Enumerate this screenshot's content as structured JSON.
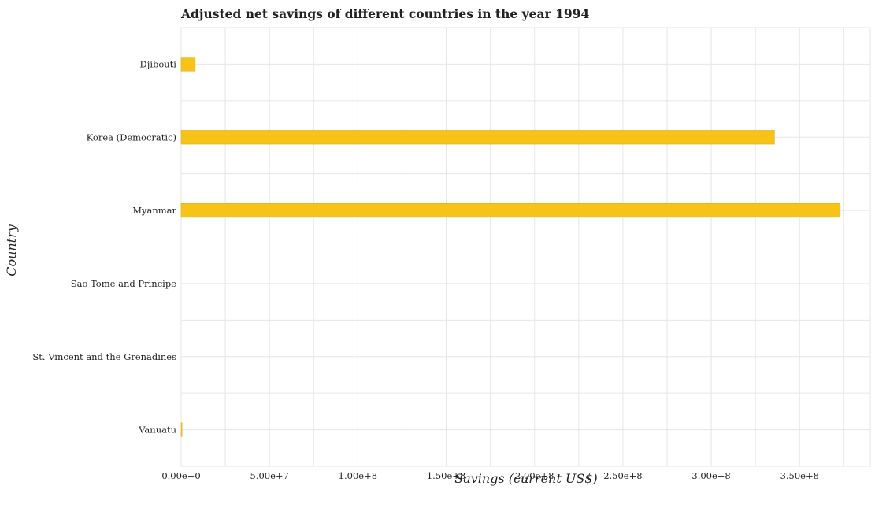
{
  "chart_data": {
    "type": "bar",
    "orientation": "horizontal",
    "title": "Adjusted net savings of different countries in the year 1994",
    "xlabel": "Savings (current US$)",
    "ylabel": "Country",
    "categories": [
      "Djibouti",
      "Korea (Democratic)",
      "Myanmar",
      "Sao Tome and Principe",
      "St. Vincent and the Grenadines",
      "Vanuatu"
    ],
    "values": [
      8000000,
      335800000,
      373000000,
      0,
      0,
      500000
    ],
    "xlim": [
      0,
      390000000
    ],
    "x_ticks": [
      0,
      50000000,
      100000000,
      150000000,
      200000000,
      250000000,
      300000000,
      350000000
    ],
    "x_tick_labels": [
      "0.00e+0",
      "5.00e+7",
      "1.00e+8",
      "1.50e+8",
      "2.00e+8",
      "2.50e+8",
      "3.00e+8",
      "3.50e+8"
    ],
    "grid": true,
    "bar_color": "#f7c318"
  }
}
